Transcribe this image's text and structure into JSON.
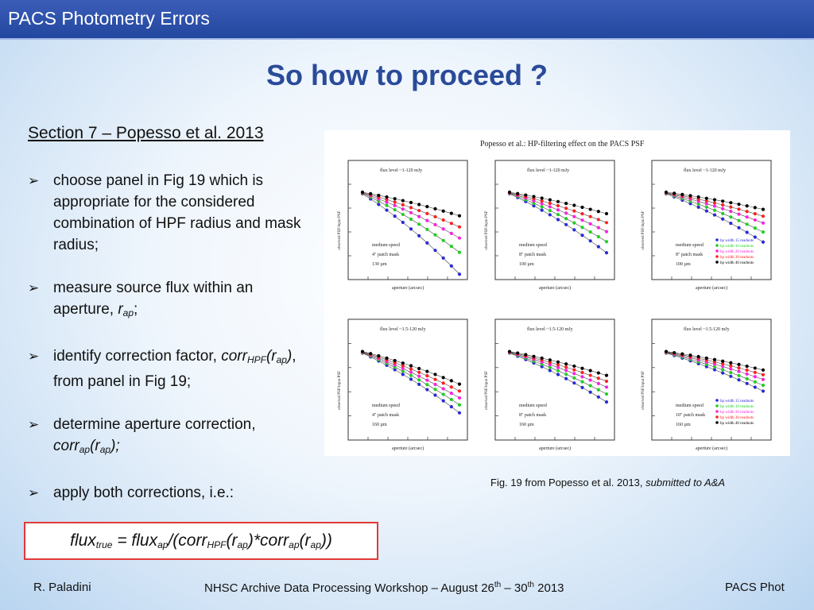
{
  "header": {
    "title": "PACS Photometry Errors"
  },
  "slide": {
    "title": "So how to proceed ?",
    "section_heading": "Section 7 – Popesso et al. 2013",
    "bullets": {
      "b1": "choose panel in Fig 19 which is appropriate for the considered combination of HPF radius and mask radius;",
      "b2_pre": "measure source flux within an aperture,",
      "b2_var": "r",
      "b2_sub": "ap",
      "b2_post": ";",
      "b3_pre": "identify correction factor,",
      "b3_corr": "corr",
      "b3_sub1": "HPF",
      "b3_open": "(r",
      "b3_sub2": "ap",
      "b3_close": ")",
      "b3_post": ", from panel in Fig 19;",
      "b4_pre": "determine aperture correction,",
      "b4_corr": "corr",
      "b4_sub1": "ap",
      "b4_open": "(r",
      "b4_sub2": "ap",
      "b4_close": ");",
      "b5": "apply both corrections, i.e.:"
    },
    "formula": {
      "p1": "flux",
      "s1": "true",
      "p2": " = flux",
      "s2": "ap",
      "p3": "/(corr",
      "s3": "HPF",
      "p4": "(r",
      "s4": "ap",
      "p5": ")*corr",
      "s5": "ap",
      "p6": "(r",
      "s6": "ap",
      "p7": "))"
    },
    "figure": {
      "title": "Popesso et al.: HP-filtering effect on the PACS PSF",
      "flux_level_top": "flux level ~1-120 mJy",
      "flux_level_bottom": "flux level ~1.5-120 mJy",
      "speed": "medium speed",
      "mask_4": "4\" patch mask",
      "mask_8": "8\" patch mask",
      "mask_10": "10\" patch mask",
      "size_130": "130 µm",
      "size_100": "100 µm",
      "size_160": "160 µm",
      "xlabel": "aperture (arcsec)",
      "ylabel": "observed PSF/input PSF",
      "legend": [
        "hp width 15 readouts",
        "hp width 10 readouts",
        "hp width 20 readouts",
        "hp width 30 readouts",
        "hp width 40 readouts"
      ],
      "series_colors": [
        "#2a2ad6",
        "#20d020",
        "#ff20e0",
        "#ff2020",
        "#000000"
      ]
    },
    "caption_main": "Fig. 19 from Popesso et al. 2013, ",
    "caption_italic": "submitted to A&A"
  },
  "footer": {
    "author": "R. Paladini",
    "event_pre": "NHSC Archive Data Processing Workshop – August 26",
    "sup1": "th",
    "event_mid": " – 30",
    "sup2": "th",
    "event_post": "   2013",
    "right": "PACS Phot"
  }
}
